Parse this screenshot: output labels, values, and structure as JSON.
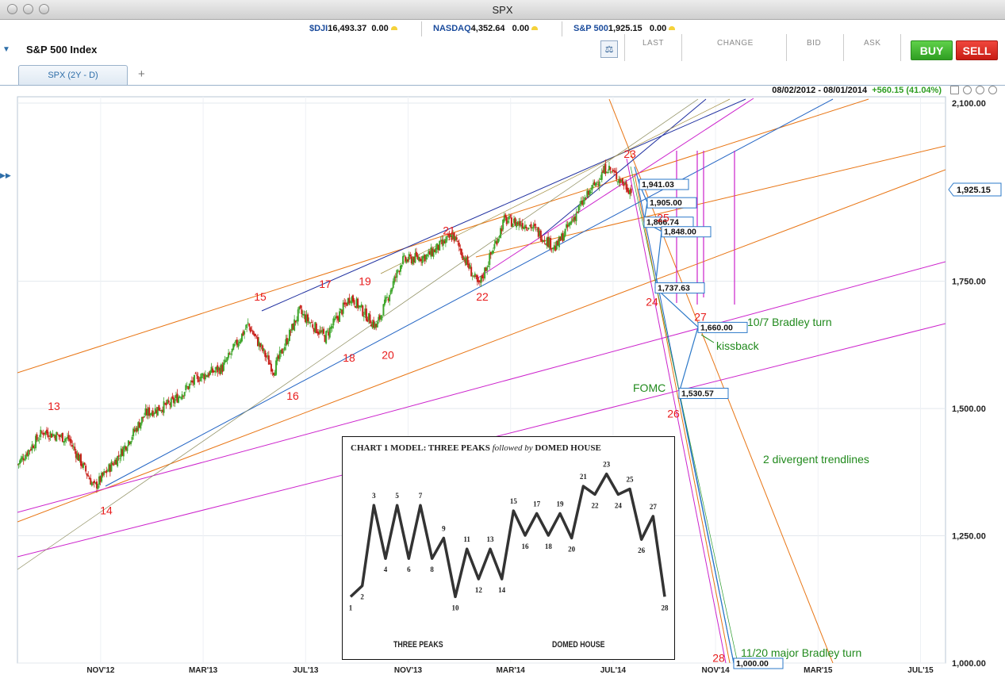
{
  "window": {
    "title": "SPX"
  },
  "tickers": [
    {
      "symbol": "$DJI",
      "value": "16,493.37",
      "change": "0.00"
    },
    {
      "symbol": "NASDAQ",
      "value": "4,352.64",
      "change": "0.00"
    },
    {
      "symbol": "S&P 500",
      "value": "1,925.15",
      "change": "0.00"
    }
  ],
  "header": {
    "index_name": "S&P 500 Index",
    "quote_labels": [
      "LAST",
      "CHANGE",
      "BID",
      "ASK"
    ],
    "buy_label": "BUY",
    "sell_label": "SELL"
  },
  "tabs": [
    {
      "label": "SPX (2Y - D)"
    }
  ],
  "add_tab_label": "+",
  "range": {
    "dates": "08/02/2012 - 08/01/2014",
    "change": "+560.15 (41.04%)"
  },
  "colors": {
    "red_wave": "#e81c1c",
    "green_annot": "#218a1d",
    "price_box": "#2b78c8",
    "up_candle": "#3fa62c",
    "down_candle": "#c8201a"
  },
  "chart_data": {
    "type": "candlestick",
    "title": "SPX (2Y - D)",
    "y_axis": {
      "min": 1000,
      "max": 2100,
      "ticks": [
        "2,100.00",
        "1,750.00",
        "1,500.00",
        "1,250.00",
        "1,000.00"
      ]
    },
    "x_axis": {
      "ticks": [
        "NOV'12",
        "MAR'13",
        "JUL'13",
        "NOV'13",
        "MAR'14",
        "JUL'14",
        "NOV'14",
        "MAR'15",
        "JUL'15"
      ]
    },
    "current_price_label": "1,925.15",
    "price_path": [
      {
        "d": "2012-08",
        "v": 1390
      },
      {
        "d": "2012-09",
        "v": 1455
      },
      {
        "d": "2012-10",
        "v": 1440
      },
      {
        "d": "2012-11",
        "v": 1345
      },
      {
        "d": "2012-12",
        "v": 1410
      },
      {
        "d": "2013-01",
        "v": 1490
      },
      {
        "d": "2013-02",
        "v": 1510
      },
      {
        "d": "2013-03",
        "v": 1560
      },
      {
        "d": "2013-04",
        "v": 1580
      },
      {
        "d": "2013-05",
        "v": 1665
      },
      {
        "d": "2013-06",
        "v": 1575
      },
      {
        "d": "2013-07",
        "v": 1690
      },
      {
        "d": "2013-08",
        "v": 1640
      },
      {
        "d": "2013-09",
        "v": 1720
      },
      {
        "d": "2013-10",
        "v": 1660
      },
      {
        "d": "2013-11",
        "v": 1790
      },
      {
        "d": "2013-12",
        "v": 1800
      },
      {
        "d": "2014-01",
        "v": 1840
      },
      {
        "d": "2014-02",
        "v": 1740
      },
      {
        "d": "2014-03",
        "v": 1870
      },
      {
        "d": "2014-04",
        "v": 1860
      },
      {
        "d": "2014-05",
        "v": 1815
      },
      {
        "d": "2014-06",
        "v": 1900
      },
      {
        "d": "2014-07",
        "v": 1975
      },
      {
        "d": "2014-08",
        "v": 1925
      }
    ],
    "wave_labels": [
      {
        "label": "13",
        "d": "2012-09",
        "v": 1505
      },
      {
        "label": "14",
        "d": "2012-11",
        "v": 1300
      },
      {
        "label": "15",
        "d": "2013-05",
        "v": 1720
      },
      {
        "label": "16",
        "d": "2013-06",
        "v": 1525
      },
      {
        "label": "17",
        "d": "2013-08",
        "v": 1745
      },
      {
        "label": "18",
        "d": "2013-09",
        "v": 1600
      },
      {
        "label": "19",
        "d": "2013-09",
        "v": 1750
      },
      {
        "label": "20",
        "d": "2013-10",
        "v": 1605
      },
      {
        "label": "21",
        "d": "2014-01",
        "v": 1850
      },
      {
        "label": "22",
        "d": "2014-02",
        "v": 1720
      },
      {
        "label": "23",
        "d": "2014-07",
        "v": 2000
      },
      {
        "label": "24",
        "d": "2014-09",
        "v": 1710
      },
      {
        "label": "25",
        "d": "2014-09",
        "v": 1875
      },
      {
        "label": "26",
        "d": "2014-09",
        "v": 1490
      },
      {
        "label": "27",
        "d": "2014-10",
        "v": 1680
      },
      {
        "label": "28",
        "d": "2014-11",
        "v": 1010
      }
    ],
    "projection_points": [
      {
        "label": "1,941.03",
        "v": 1941.03
      },
      {
        "label": "1,905.00",
        "v": 1905.0
      },
      {
        "label": "1,866.74",
        "v": 1866.74
      },
      {
        "label": "1,848.00",
        "v": 1848.0
      },
      {
        "label": "1,737.63",
        "v": 1737.63
      },
      {
        "label": "1,660.00",
        "v": 1660.0
      },
      {
        "label": "1,530.57",
        "v": 1530.57
      },
      {
        "label": "1,000.00",
        "v": 1000.0
      }
    ],
    "annotations": [
      "10/7 Bradley turn",
      "kissback",
      "FOMC",
      "2 divergent trendlines",
      "11/20 major Bradley turn"
    ]
  },
  "inset": {
    "title": "CHART 1  MODEL: THREE PEAKS",
    "title_mid": "followed by",
    "title_end": "DOMED HOUSE",
    "left_label": "THREE PEAKS",
    "right_label": "DOMED HOUSE",
    "points": [
      {
        "label": "1",
        "v": 0.05
      },
      {
        "label": "2",
        "v": 0.13
      },
      {
        "label": "3",
        "v": 0.72
      },
      {
        "label": "4",
        "v": 0.33
      },
      {
        "label": "5",
        "v": 0.72
      },
      {
        "label": "6",
        "v": 0.33
      },
      {
        "label": "7",
        "v": 0.72
      },
      {
        "label": "8",
        "v": 0.33
      },
      {
        "label": "9",
        "v": 0.48
      },
      {
        "label": "10",
        "v": 0.05
      },
      {
        "label": "11",
        "v": 0.4
      },
      {
        "label": "12",
        "v": 0.18
      },
      {
        "label": "13",
        "v": 0.4
      },
      {
        "label": "14",
        "v": 0.18
      },
      {
        "label": "15",
        "v": 0.68
      },
      {
        "label": "16",
        "v": 0.5
      },
      {
        "label": "17",
        "v": 0.66
      },
      {
        "label": "18",
        "v": 0.5
      },
      {
        "label": "19",
        "v": 0.66
      },
      {
        "label": "20",
        "v": 0.48
      },
      {
        "label": "21",
        "v": 0.86
      },
      {
        "label": "22",
        "v": 0.8
      },
      {
        "label": "23",
        "v": 0.95
      },
      {
        "label": "24",
        "v": 0.8
      },
      {
        "label": "25",
        "v": 0.84
      },
      {
        "label": "26",
        "v": 0.47
      },
      {
        "label": "27",
        "v": 0.64
      },
      {
        "label": "28",
        "v": 0.05
      }
    ]
  }
}
